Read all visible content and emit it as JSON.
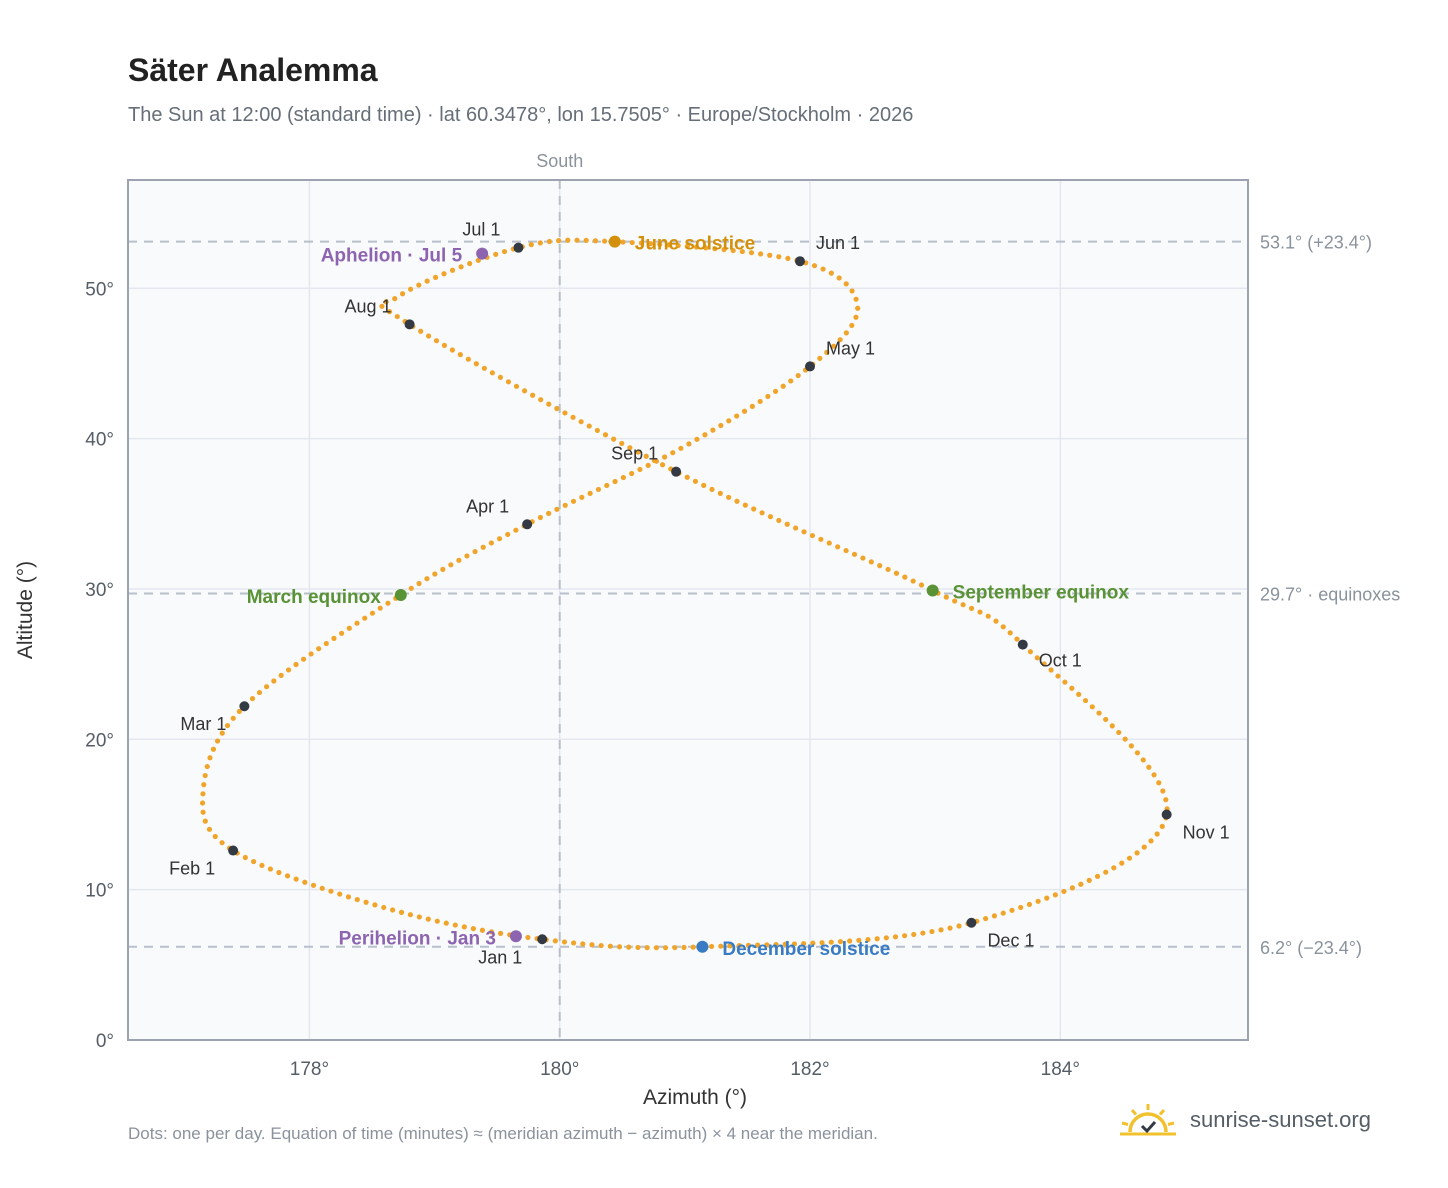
{
  "title": "Säter Analemma",
  "subtitle": "The Sun at 12:00 (standard time) · lat 60.3478°, lon 15.7505° · Europe/Stockholm · 2026",
  "footnote": "Dots: one per day. Equation of time (minutes) ≈ (meridian azimuth − azimuth) × 4 near the meridian.",
  "brand": {
    "name": "sunrise-sunset.org",
    "logo_icon": "sun-checkmark-icon"
  },
  "colors": {
    "curve": "#f0a52a",
    "month_marker": "#333a44",
    "june_solstice": "#d4900a",
    "december_solstice": "#3a7cc4",
    "equinox": "#5a9236",
    "apsis": "#8d64b0",
    "reference_line": "#b7c0cb",
    "plot_background": "#f8fafc",
    "grid": "#e4e8ee",
    "frame": "#9aa3ae"
  },
  "chart_data": {
    "type": "scatter",
    "xlabel": "Azimuth (°)",
    "ylabel": "Altitude (°)",
    "xlim": [
      176.55,
      185.5
    ],
    "ylim": [
      0,
      57.2
    ],
    "xticks": [
      178,
      180,
      182,
      184
    ],
    "xtick_labels": [
      "178°",
      "180°",
      "182°",
      "184°"
    ],
    "yticks": [
      0,
      10,
      20,
      30,
      40,
      50
    ],
    "ytick_labels": [
      "0°",
      "10°",
      "20°",
      "30°",
      "40°",
      "50°"
    ],
    "grid": true,
    "meridian": {
      "azimuth": 180,
      "label": "South"
    },
    "reference_lines": [
      {
        "altitude": 53.1,
        "label": "53.1° (+23.4°)"
      },
      {
        "altitude": 29.7,
        "label": "29.7° · equinoxes"
      },
      {
        "altitude": 6.2,
        "label": "6.2° (−23.4°)"
      }
    ],
    "month_markers": [
      {
        "label": "Jan 1",
        "azimuth": 179.86,
        "altitude": 6.7
      },
      {
        "label": "Feb 1",
        "azimuth": 177.39,
        "altitude": 12.6
      },
      {
        "label": "Mar 1",
        "azimuth": 177.48,
        "altitude": 22.2
      },
      {
        "label": "Apr 1",
        "azimuth": 179.74,
        "altitude": 34.3
      },
      {
        "label": "May 1",
        "azimuth": 182.0,
        "altitude": 44.8
      },
      {
        "label": "Jun 1",
        "azimuth": 181.92,
        "altitude": 51.8
      },
      {
        "label": "Jul 1",
        "azimuth": 179.67,
        "altitude": 52.7
      },
      {
        "label": "Aug 1",
        "azimuth": 178.8,
        "altitude": 47.6
      },
      {
        "label": "Sep 1",
        "azimuth": 180.93,
        "altitude": 37.8
      },
      {
        "label": "Oct 1",
        "azimuth": 183.7,
        "altitude": 26.3
      },
      {
        "label": "Nov 1",
        "azimuth": 184.85,
        "altitude": 15.0
      },
      {
        "label": "Dec 1",
        "azimuth": 183.29,
        "altitude": 7.8
      }
    ],
    "events": [
      {
        "label": "June solstice",
        "azimuth": 180.44,
        "altitude": 53.1,
        "color_key": "june_solstice"
      },
      {
        "label": "December solstice",
        "azimuth": 181.14,
        "altitude": 6.2,
        "color_key": "december_solstice"
      },
      {
        "label": "March equinox",
        "azimuth": 178.73,
        "altitude": 29.6,
        "color_key": "equinox"
      },
      {
        "label": "September equinox",
        "azimuth": 182.98,
        "altitude": 29.9,
        "color_key": "equinox"
      },
      {
        "label": "Aphelion · Jul 5",
        "azimuth": 179.38,
        "altitude": 52.3,
        "color_key": "apsis"
      },
      {
        "label": "Perihelion · Jan 3",
        "azimuth": 179.65,
        "altitude": 6.9,
        "color_key": "apsis"
      }
    ],
    "path_outline": [
      {
        "azimuth": 181.14,
        "altitude": 6.2
      },
      {
        "azimuth": 179.86,
        "altitude": 6.7
      },
      {
        "azimuth": 178.6,
        "altitude": 8.8
      },
      {
        "azimuth": 177.39,
        "altitude": 12.6
      },
      {
        "azimuth": 177.15,
        "altitude": 16.5
      },
      {
        "azimuth": 177.48,
        "altitude": 22.2
      },
      {
        "azimuth": 178.73,
        "altitude": 29.6
      },
      {
        "azimuth": 179.74,
        "altitude": 34.3
      },
      {
        "azimuth": 181.0,
        "altitude": 39.5
      },
      {
        "azimuth": 182.0,
        "altitude": 44.8
      },
      {
        "azimuth": 182.38,
        "altitude": 48.8
      },
      {
        "azimuth": 181.92,
        "altitude": 51.8
      },
      {
        "azimuth": 180.44,
        "altitude": 53.1
      },
      {
        "azimuth": 179.67,
        "altitude": 52.7
      },
      {
        "azimuth": 178.72,
        "altitude": 49.5
      },
      {
        "azimuth": 178.8,
        "altitude": 47.6
      },
      {
        "azimuth": 180.93,
        "altitude": 37.8
      },
      {
        "azimuth": 182.98,
        "altitude": 29.9
      },
      {
        "azimuth": 183.7,
        "altitude": 26.3
      },
      {
        "azimuth": 184.85,
        "altitude": 15.0
      },
      {
        "azimuth": 183.29,
        "altitude": 7.8
      },
      {
        "azimuth": 181.14,
        "altitude": 6.2
      }
    ]
  }
}
